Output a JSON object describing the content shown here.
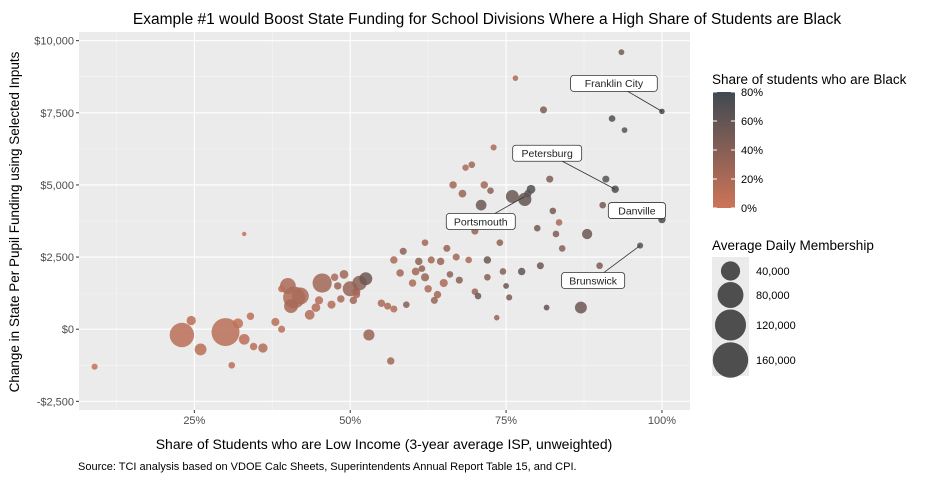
{
  "chart_data": {
    "type": "scatter",
    "title": "Example #1 would Boost State Funding for School Divisions Where a High Share of Students are Black",
    "xlabel": "Share of Students who are Low Income (3-year average ISP, unweighted)",
    "ylabel": "Change in State Per Pupil Funding using Selected Inputs",
    "caption": "Source: TCI analysis based on VDOE Calc Sheets, Superintendents Annual Report Table 15, and CPI.",
    "xlim": [
      0.065,
      1.045
    ],
    "ylim": [
      -2800,
      10300
    ],
    "x_ticks": [
      {
        "value": 0.25,
        "label": "25%"
      },
      {
        "value": 0.5,
        "label": "50%"
      },
      {
        "value": 0.75,
        "label": "75%"
      },
      {
        "value": 1.0,
        "label": "100%"
      }
    ],
    "y_ticks": [
      {
        "value": -2500,
        "label": "-$2,500"
      },
      {
        "value": 0,
        "label": "$0"
      },
      {
        "value": 2500,
        "label": "$2,500"
      },
      {
        "value": 5000,
        "label": "$5,000"
      },
      {
        "value": 7500,
        "label": "$7,500"
      },
      {
        "value": 10000,
        "label": "$10,000"
      }
    ],
    "grid": true,
    "color_legend": {
      "title": "Share of students who are Black",
      "low_color": "#cd7458",
      "high_color": "#404a52",
      "ticks": [
        "0%",
        "20%",
        "40%",
        "60%",
        "80%"
      ]
    },
    "size_legend": {
      "title": "Average Daily Membership",
      "entries": [
        {
          "value": 40000,
          "label": "40,000"
        },
        {
          "value": 80000,
          "label": "80,000"
        },
        {
          "value": 120000,
          "label": "120,000"
        },
        {
          "value": 160000,
          "label": "160,000"
        }
      ]
    },
    "labels": [
      {
        "text": "Franklin City",
        "x": 1.0,
        "y": 7550
      },
      {
        "text": "Petersburg",
        "x": 0.925,
        "y": 4850
      },
      {
        "text": "Portsmouth",
        "x": 0.78,
        "y": 4600
      },
      {
        "text": "Danville",
        "x": 1.0,
        "y": 3800
      },
      {
        "text": "Brunswick",
        "x": 0.965,
        "y": 2900
      }
    ],
    "points": [
      {
        "x": 0.09,
        "y": -1300,
        "b": 0.05,
        "s": 1500
      },
      {
        "x": 0.23,
        "y": -200,
        "b": 0.1,
        "s": 70000
      },
      {
        "x": 0.245,
        "y": 300,
        "b": 0.1,
        "s": 6000
      },
      {
        "x": 0.26,
        "y": -700,
        "b": 0.1,
        "s": 12000
      },
      {
        "x": 0.3,
        "y": -100,
        "b": 0.12,
        "s": 95000
      },
      {
        "x": 0.31,
        "y": -1250,
        "b": 0.1,
        "s": 2000
      },
      {
        "x": 0.32,
        "y": 200,
        "b": 0.08,
        "s": 8000
      },
      {
        "x": 0.33,
        "y": -350,
        "b": 0.1,
        "s": 9000
      },
      {
        "x": 0.33,
        "y": 3300,
        "b": 0.05,
        "s": 300
      },
      {
        "x": 0.34,
        "y": 450,
        "b": 0.1,
        "s": 3000
      },
      {
        "x": 0.345,
        "y": -600,
        "b": 0.1,
        "s": 3000
      },
      {
        "x": 0.36,
        "y": -650,
        "b": 0.15,
        "s": 6000
      },
      {
        "x": 0.38,
        "y": 250,
        "b": 0.12,
        "s": 4000
      },
      {
        "x": 0.39,
        "y": 0,
        "b": 0.12,
        "s": 2500
      },
      {
        "x": 0.39,
        "y": 1400,
        "b": 0.12,
        "s": 2500
      },
      {
        "x": 0.4,
        "y": 1500,
        "b": 0.2,
        "s": 25000
      },
      {
        "x": 0.41,
        "y": 1100,
        "b": 0.18,
        "s": 55000
      },
      {
        "x": 0.42,
        "y": 1150,
        "b": 0.2,
        "s": 30000
      },
      {
        "x": 0.405,
        "y": 800,
        "b": 0.22,
        "s": 18000
      },
      {
        "x": 0.435,
        "y": 500,
        "b": 0.15,
        "s": 7000
      },
      {
        "x": 0.445,
        "y": 750,
        "b": 0.15,
        "s": 5000
      },
      {
        "x": 0.45,
        "y": 1000,
        "b": 0.15,
        "s": 4000
      },
      {
        "x": 0.455,
        "y": 1600,
        "b": 0.25,
        "s": 40000
      },
      {
        "x": 0.47,
        "y": 850,
        "b": 0.15,
        "s": 4000
      },
      {
        "x": 0.475,
        "y": 1800,
        "b": 0.2,
        "s": 3000
      },
      {
        "x": 0.48,
        "y": 1500,
        "b": 0.3,
        "s": 3000
      },
      {
        "x": 0.485,
        "y": 1050,
        "b": 0.2,
        "s": 3000
      },
      {
        "x": 0.49,
        "y": 1900,
        "b": 0.25,
        "s": 5000
      },
      {
        "x": 0.5,
        "y": 1400,
        "b": 0.3,
        "s": 22000
      },
      {
        "x": 0.505,
        "y": 1000,
        "b": 0.25,
        "s": 3000
      },
      {
        "x": 0.51,
        "y": 1200,
        "b": 0.2,
        "s": 3000
      },
      {
        "x": 0.515,
        "y": 1600,
        "b": 0.35,
        "s": 20000
      },
      {
        "x": 0.525,
        "y": 1750,
        "b": 0.55,
        "s": 15000
      },
      {
        "x": 0.53,
        "y": -200,
        "b": 0.3,
        "s": 10000
      },
      {
        "x": 0.51,
        "y": 1300,
        "b": 0.3,
        "s": 3500
      },
      {
        "x": 0.55,
        "y": 900,
        "b": 0.2,
        "s": 3000
      },
      {
        "x": 0.56,
        "y": 800,
        "b": 0.2,
        "s": 2500
      },
      {
        "x": 0.565,
        "y": -1100,
        "b": 0.25,
        "s": 3000
      },
      {
        "x": 0.57,
        "y": 700,
        "b": 0.15,
        "s": 2500
      },
      {
        "x": 0.57,
        "y": 2400,
        "b": 0.2,
        "s": 3000
      },
      {
        "x": 0.58,
        "y": 1950,
        "b": 0.25,
        "s": 3000
      },
      {
        "x": 0.585,
        "y": 2700,
        "b": 0.35,
        "s": 2500
      },
      {
        "x": 0.59,
        "y": 850,
        "b": 0.4,
        "s": 2000
      },
      {
        "x": 0.6,
        "y": 1600,
        "b": 0.2,
        "s": 3000
      },
      {
        "x": 0.605,
        "y": 2000,
        "b": 0.25,
        "s": 3500
      },
      {
        "x": 0.61,
        "y": 2350,
        "b": 0.35,
        "s": 3000
      },
      {
        "x": 0.615,
        "y": 2100,
        "b": 0.35,
        "s": 2000
      },
      {
        "x": 0.62,
        "y": 1800,
        "b": 0.3,
        "s": 4000
      },
      {
        "x": 0.62,
        "y": 3000,
        "b": 0.25,
        "s": 2000
      },
      {
        "x": 0.625,
        "y": 1400,
        "b": 0.2,
        "s": 3000
      },
      {
        "x": 0.63,
        "y": 2400,
        "b": 0.25,
        "s": 2500
      },
      {
        "x": 0.635,
        "y": 1000,
        "b": 0.3,
        "s": 2500
      },
      {
        "x": 0.64,
        "y": 1200,
        "b": 0.25,
        "s": 3000
      },
      {
        "x": 0.645,
        "y": 2350,
        "b": 0.3,
        "s": 3000
      },
      {
        "x": 0.65,
        "y": 1600,
        "b": 0.2,
        "s": 4000
      },
      {
        "x": 0.655,
        "y": 2800,
        "b": 0.3,
        "s": 2500
      },
      {
        "x": 0.66,
        "y": 1900,
        "b": 0.35,
        "s": 2000
      },
      {
        "x": 0.665,
        "y": 5000,
        "b": 0.25,
        "s": 3000
      },
      {
        "x": 0.67,
        "y": 2500,
        "b": 0.25,
        "s": 2500
      },
      {
        "x": 0.675,
        "y": 1700,
        "b": 0.4,
        "s": 2500
      },
      {
        "x": 0.68,
        "y": 4700,
        "b": 0.3,
        "s": 3500
      },
      {
        "x": 0.685,
        "y": 5600,
        "b": 0.2,
        "s": 1800
      },
      {
        "x": 0.69,
        "y": 2400,
        "b": 0.2,
        "s": 2000
      },
      {
        "x": 0.695,
        "y": 5700,
        "b": 0.25,
        "s": 2000
      },
      {
        "x": 0.7,
        "y": 1300,
        "b": 0.3,
        "s": 2000
      },
      {
        "x": 0.7,
        "y": 3400,
        "b": 0.3,
        "s": 2500
      },
      {
        "x": 0.705,
        "y": 1150,
        "b": 0.55,
        "s": 2000
      },
      {
        "x": 0.71,
        "y": 4300,
        "b": 0.55,
        "s": 9000
      },
      {
        "x": 0.715,
        "y": 5000,
        "b": 0.25,
        "s": 3000
      },
      {
        "x": 0.72,
        "y": 2400,
        "b": 0.55,
        "s": 3000
      },
      {
        "x": 0.72,
        "y": 1800,
        "b": 0.4,
        "s": 2000
      },
      {
        "x": 0.725,
        "y": 4800,
        "b": 0.35,
        "s": 2000
      },
      {
        "x": 0.73,
        "y": 6300,
        "b": 0.2,
        "s": 1500
      },
      {
        "x": 0.735,
        "y": 400,
        "b": 0.3,
        "s": 1000
      },
      {
        "x": 0.74,
        "y": 3000,
        "b": 0.35,
        "s": 2000
      },
      {
        "x": 0.745,
        "y": 2000,
        "b": 0.4,
        "s": 2000
      },
      {
        "x": 0.75,
        "y": 1500,
        "b": 0.55,
        "s": 1200
      },
      {
        "x": 0.755,
        "y": 1100,
        "b": 0.45,
        "s": 1500
      },
      {
        "x": 0.76,
        "y": 4600,
        "b": 0.55,
        "s": 15000
      },
      {
        "x": 0.765,
        "y": 8700,
        "b": 0.2,
        "s": 1000
      },
      {
        "x": 0.775,
        "y": 2000,
        "b": 0.6,
        "s": 3000
      },
      {
        "x": 0.78,
        "y": 4500,
        "b": 0.6,
        "s": 16000
      },
      {
        "x": 0.785,
        "y": 4700,
        "b": 0.65,
        "s": 3000
      },
      {
        "x": 0.79,
        "y": 4850,
        "b": 0.7,
        "s": 5000
      },
      {
        "x": 0.8,
        "y": 3500,
        "b": 0.5,
        "s": 2000
      },
      {
        "x": 0.805,
        "y": 2200,
        "b": 0.55,
        "s": 2500
      },
      {
        "x": 0.81,
        "y": 7600,
        "b": 0.45,
        "s": 2500
      },
      {
        "x": 0.815,
        "y": 750,
        "b": 0.6,
        "s": 1200
      },
      {
        "x": 0.82,
        "y": 5200,
        "b": 0.45,
        "s": 2500
      },
      {
        "x": 0.825,
        "y": 4100,
        "b": 0.5,
        "s": 2000
      },
      {
        "x": 0.83,
        "y": 3300,
        "b": 0.45,
        "s": 2000
      },
      {
        "x": 0.835,
        "y": 3700,
        "b": 0.2,
        "s": 2000
      },
      {
        "x": 0.84,
        "y": 2800,
        "b": 0.4,
        "s": 2000
      },
      {
        "x": 0.87,
        "y": 750,
        "b": 0.55,
        "s": 12000
      },
      {
        "x": 0.88,
        "y": 3300,
        "b": 0.55,
        "s": 8000
      },
      {
        "x": 0.9,
        "y": 2200,
        "b": 0.45,
        "s": 2000
      },
      {
        "x": 0.905,
        "y": 4300,
        "b": 0.5,
        "s": 2000
      },
      {
        "x": 0.91,
        "y": 5200,
        "b": 0.65,
        "s": 2500
      },
      {
        "x": 0.92,
        "y": 7300,
        "b": 0.7,
        "s": 2000
      },
      {
        "x": 0.925,
        "y": 4850,
        "b": 0.75,
        "s": 3000
      },
      {
        "x": 0.935,
        "y": 9600,
        "b": 0.5,
        "s": 1200
      },
      {
        "x": 0.94,
        "y": 6900,
        "b": 0.65,
        "s": 1200
      },
      {
        "x": 0.965,
        "y": 2900,
        "b": 0.65,
        "s": 1500
      },
      {
        "x": 1.0,
        "y": 7550,
        "b": 0.8,
        "s": 1000
      },
      {
        "x": 1.0,
        "y": 3800,
        "b": 0.75,
        "s": 3000
      }
    ]
  }
}
